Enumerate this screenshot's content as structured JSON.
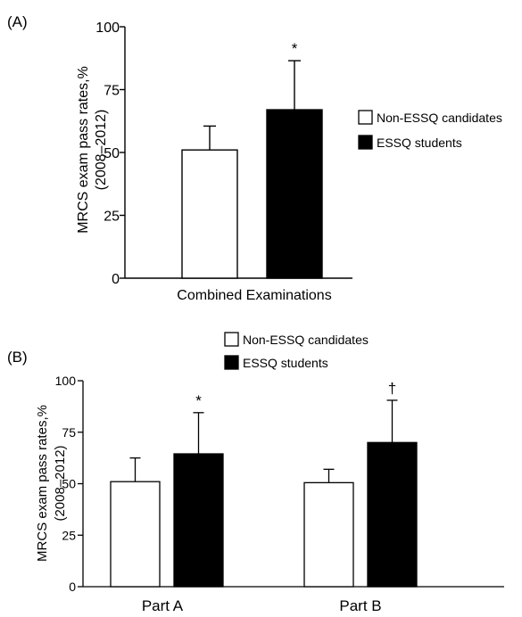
{
  "chart_data": [
    {
      "panel_label": "(A)",
      "type": "bar",
      "categories": [
        "Combined Examinations"
      ],
      "series": [
        {
          "name": "Non-ESSQ candidates",
          "color": "#ffffff",
          "values": [
            51
          ],
          "error": [
            9.5
          ]
        },
        {
          "name": "ESSQ students",
          "color": "#000000",
          "values": [
            67
          ],
          "error": [
            19.5
          ]
        }
      ],
      "annotations": [
        {
          "category_index": 0,
          "series_index": 1,
          "text": "*"
        }
      ],
      "ylabel_line1": "MRCS exam pass rates,%",
      "ylabel_line2": "(2008–2012)",
      "ylim": [
        0,
        100
      ],
      "yticks": [
        "0",
        "25",
        "50",
        "75",
        "100"
      ],
      "legend_placement": "right"
    },
    {
      "panel_label": "(B)",
      "type": "bar",
      "categories": [
        "Part A",
        "Part B"
      ],
      "series": [
        {
          "name": "Non-ESSQ candidates",
          "color": "#ffffff",
          "values": [
            51,
            50.5
          ],
          "error": [
            11.5,
            6.5
          ]
        },
        {
          "name": "ESSQ students",
          "color": "#000000",
          "values": [
            64.5,
            70
          ],
          "error": [
            20,
            20.5
          ]
        }
      ],
      "annotations": [
        {
          "category_index": 0,
          "series_index": 1,
          "text": "*"
        },
        {
          "category_index": 1,
          "series_index": 1,
          "text": "†"
        }
      ],
      "ylabel_line1": "MRCS exam pass rates,%",
      "ylabel_line2": "(2008–2012)",
      "ylim": [
        0,
        100
      ],
      "yticks": [
        "0",
        "25",
        "50",
        "75",
        "100"
      ],
      "legend_placement": "top"
    }
  ]
}
